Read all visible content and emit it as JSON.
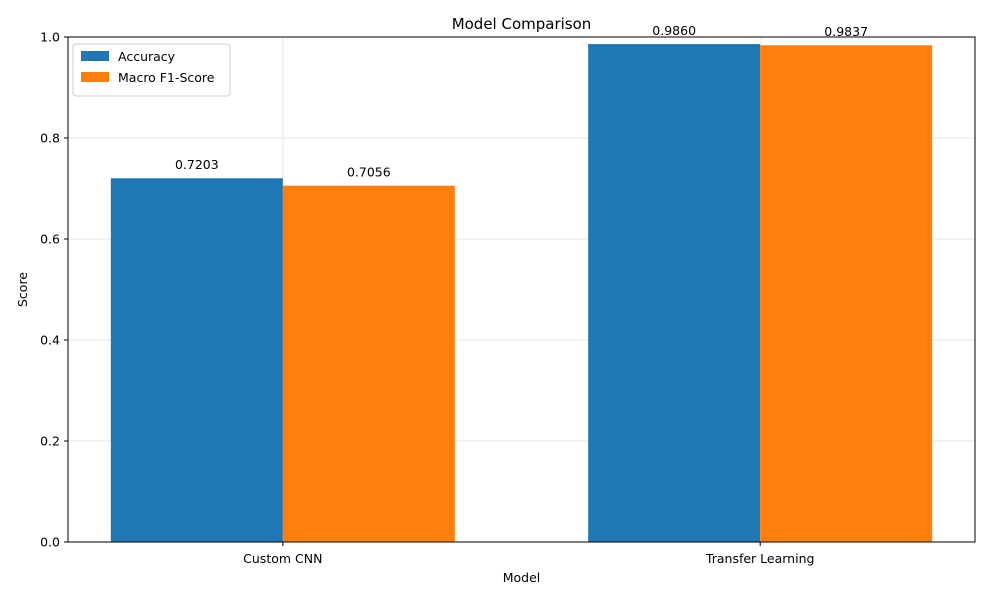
{
  "chart_data": {
    "type": "bar",
    "title": "Model Comparison",
    "xlabel": "Model",
    "ylabel": "Score",
    "categories": [
      "Custom CNN",
      "Transfer Learning"
    ],
    "series": [
      {
        "name": "Accuracy",
        "values": [
          0.7203,
          0.986
        ],
        "color": "#1f77b4"
      },
      {
        "name": "Macro F1-Score",
        "values": [
          0.7056,
          0.9837
        ],
        "color": "#ff7f0e"
      }
    ],
    "data_labels": [
      [
        "0.7203",
        "0.9860"
      ],
      [
        "0.7056",
        "0.9837"
      ]
    ],
    "ylim": [
      0,
      1.0
    ],
    "yticks": [
      0.0,
      0.2,
      0.4,
      0.6,
      0.8,
      1.0
    ],
    "ytick_labels": [
      "0.0",
      "0.2",
      "0.4",
      "0.6",
      "0.8",
      "1.0"
    ],
    "grid": true,
    "legend_position": "top-left"
  }
}
